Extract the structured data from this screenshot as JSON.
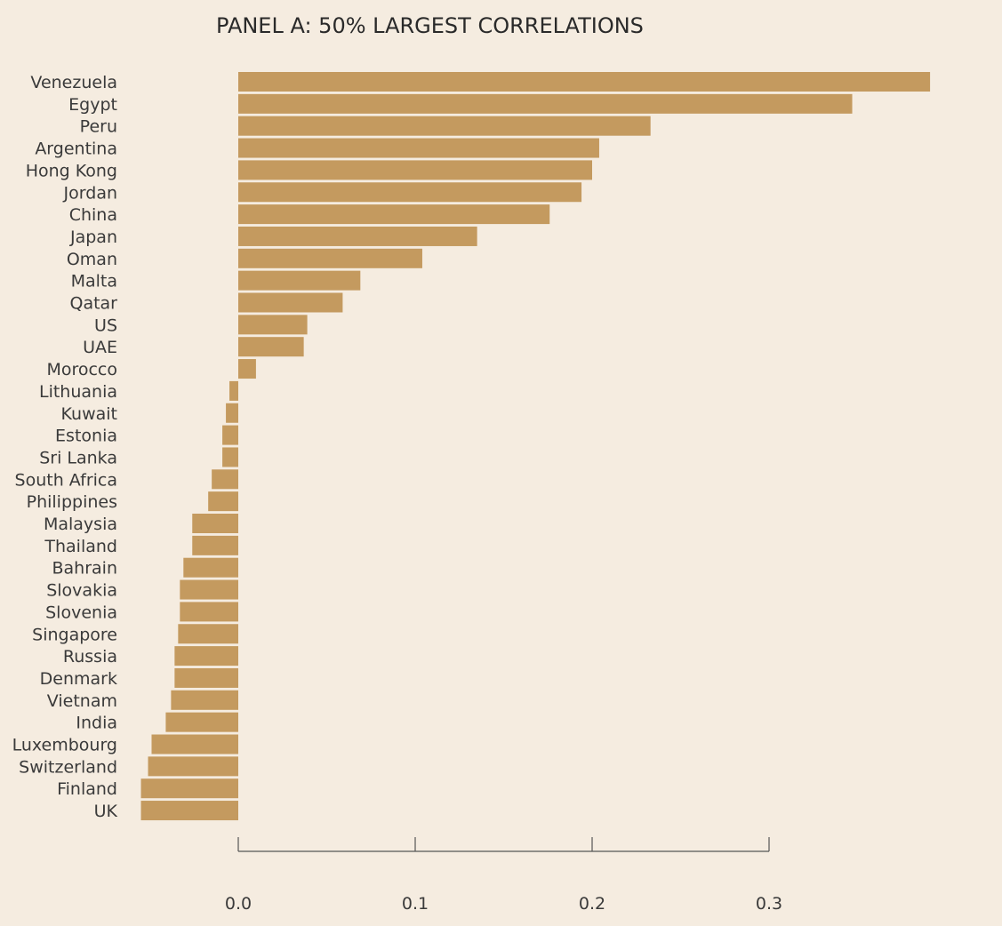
{
  "chart_data": {
    "type": "bar",
    "orientation": "horizontal",
    "title": "PANEL A: 50% LARGEST CORRELATIONS",
    "xlabel": "",
    "ylabel": "",
    "xlim": [
      -0.055,
      0.4
    ],
    "xticks": [
      0.0,
      0.1,
      0.2,
      0.3
    ],
    "xtick_labels": [
      "0.0",
      "0.1",
      "0.2",
      "0.3"
    ],
    "grid": false,
    "bar_color": "#c49a5f",
    "categories": [
      "Venezuela",
      "Egypt",
      "Peru",
      "Argentina",
      "Hong Kong",
      "Jordan",
      "China",
      "Japan",
      "Oman",
      "Malta",
      "Qatar",
      "US",
      "UAE",
      "Morocco",
      "Lithuania",
      "Kuwait",
      "Estonia",
      "Sri Lanka",
      "South Africa",
      "Philippines",
      "Malaysia",
      "Thailand",
      "Bahrain",
      "Slovakia",
      "Slovenia",
      "Singapore",
      "Russia",
      "Denmark",
      "Vietnam",
      "India",
      "Luxembourg",
      "Switzerland",
      "Finland",
      "UK"
    ],
    "values": [
      0.391,
      0.347,
      0.233,
      0.204,
      0.2,
      0.194,
      0.176,
      0.135,
      0.104,
      0.069,
      0.059,
      0.039,
      0.037,
      0.01,
      -0.005,
      -0.007,
      -0.009,
      -0.009,
      -0.015,
      -0.017,
      -0.026,
      -0.026,
      -0.031,
      -0.033,
      -0.033,
      -0.034,
      -0.036,
      -0.036,
      -0.038,
      -0.041,
      -0.049,
      -0.051,
      -0.055,
      -0.055
    ]
  },
  "colors": {
    "background": "#f5ece0",
    "bar": "#c49a5f",
    "axis": "#555555",
    "text": "#3a3a3a"
  }
}
